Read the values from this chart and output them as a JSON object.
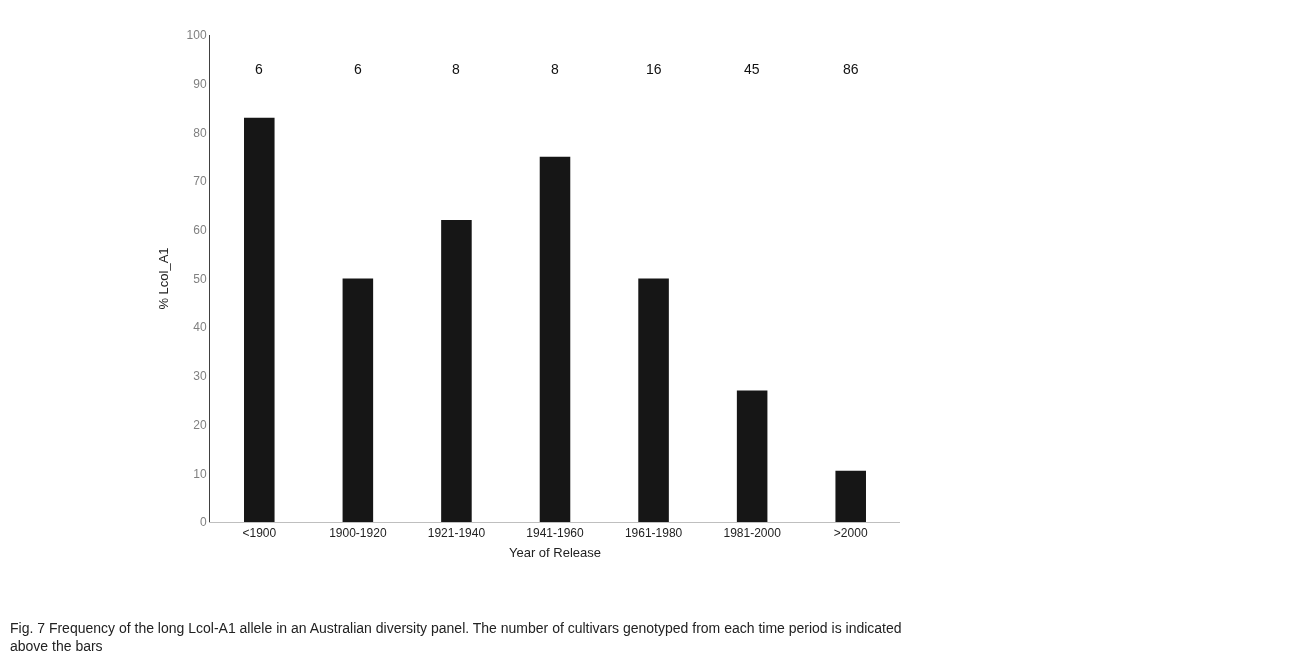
{
  "chart_data": {
    "type": "bar",
    "xlabel": "Year of Release",
    "ylabel": "% Lcol_A1",
    "categories": [
      "<1900",
      "1900-1920",
      "1921-1940",
      "1941-1960",
      "1961-1980",
      "1981-2000",
      ">2000"
    ],
    "values": [
      83,
      50,
      62,
      75,
      50,
      27,
      10.5
    ],
    "color": "#161616",
    "ylim": [
      0,
      100
    ],
    "yticks": [
      0,
      10,
      20,
      30,
      40,
      50,
      60,
      70,
      80,
      90,
      100
    ],
    "legend": false,
    "annotations": [
      "6",
      "6",
      "8",
      "8",
      "16",
      "45",
      "86",
      "Fig. 7 Frequency of the long Lcol-A1 allele in an Australian diversity panel. The number of cultivars genotyped from each time period is indicated above the bars"
    ]
  }
}
